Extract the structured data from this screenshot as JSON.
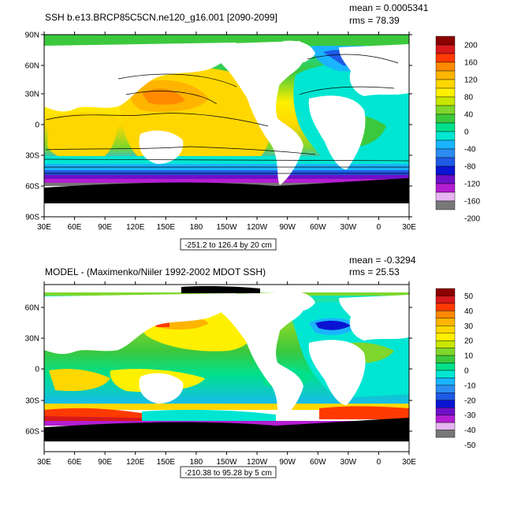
{
  "panels": [
    {
      "title": "SSH b.e13.BRCP85C5CN.ne120_g16.001 [2090-2099]",
      "mean": "mean = 0.0005341",
      "rms": "rms = 78.39",
      "range_note": "-251.2 to 126.4 by 20 cm",
      "lat_labels": [
        "90N",
        "60N",
        "30N",
        "0",
        "30S",
        "60S",
        "90S"
      ],
      "lon_labels": [
        "30E",
        "60E",
        "90E",
        "120E",
        "150E",
        "180",
        "150W",
        "120W",
        "90W",
        "60W",
        "30W",
        "0",
        "30E"
      ],
      "colorbar": {
        "labels": [
          "200",
          "160",
          "120",
          "80",
          "40",
          "0",
          "-40",
          "-80",
          "-120",
          "-160",
          "-200"
        ],
        "colors": [
          "#8b0000",
          "#d7191c",
          "#ff3a00",
          "#ff8a00",
          "#ffb400",
          "#ffd700",
          "#fff000",
          "#c8e600",
          "#7fd62c",
          "#3cc83c",
          "#00e08c",
          "#00e6d2",
          "#1ab4ff",
          "#2c8cf0",
          "#1e5ae6",
          "#0a14d2",
          "#6e10c8",
          "#b41ed2",
          "#e6b4f0",
          "#787878"
        ]
      }
    },
    {
      "title": "MODEL - (Maximenko/Niiler 1992-2002 MDOT SSH)",
      "mean": "mean = -0.3294",
      "rms": "rms = 25.53",
      "range_note": "-210.38 to 95.28 by 5 cm",
      "lat_labels": [
        "60N",
        "30N",
        "0",
        "30S",
        "60S"
      ],
      "lon_labels": [
        "30E",
        "60E",
        "90E",
        "120E",
        "150E",
        "180",
        "150W",
        "120W",
        "90W",
        "60W",
        "30W",
        "0",
        "30E"
      ],
      "colorbar": {
        "labels": [
          "50",
          "40",
          "30",
          "20",
          "10",
          "0",
          "-10",
          "-20",
          "-30",
          "-40",
          "-50"
        ],
        "colors": [
          "#8b0000",
          "#d7191c",
          "#ff3a00",
          "#ff8a00",
          "#ffb400",
          "#ffd700",
          "#fff000",
          "#c8e600",
          "#7fd62c",
          "#3cc83c",
          "#00e08c",
          "#00e6d2",
          "#1ab4ff",
          "#2c8cf0",
          "#1e5ae6",
          "#0a14d2",
          "#6e10c8",
          "#b41ed2",
          "#e6b4f0",
          "#787878"
        ]
      }
    }
  ]
}
